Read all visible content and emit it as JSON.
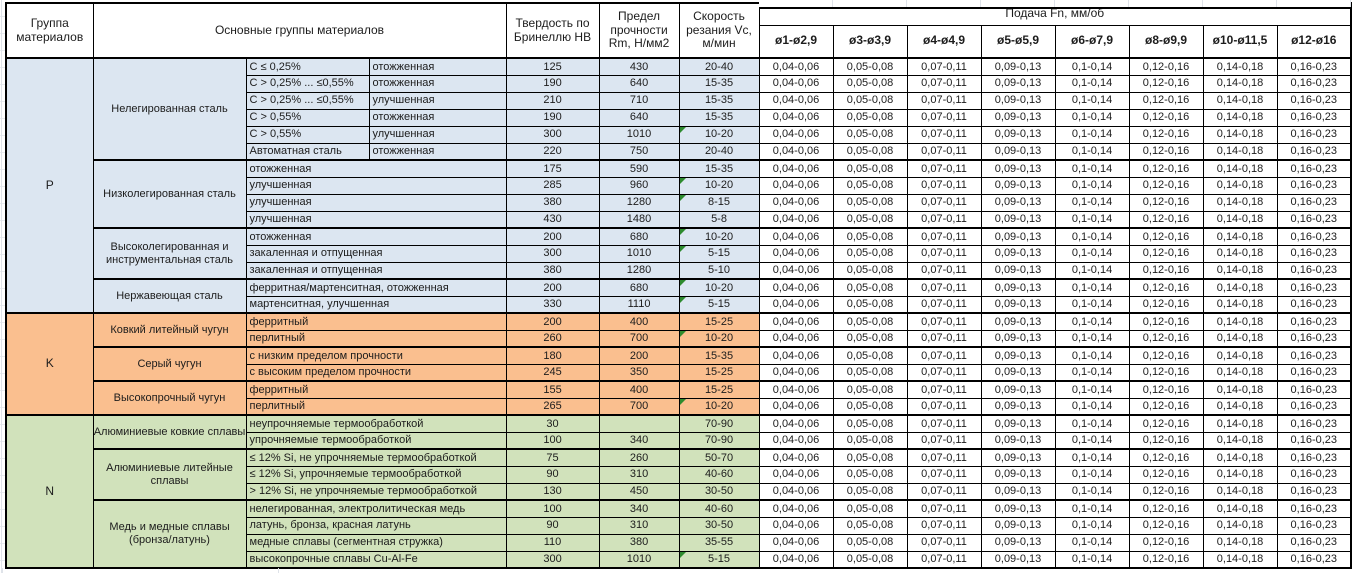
{
  "table": {
    "header": {
      "group_col": "Группа материалов",
      "main_col": "Основные группы материалов",
      "hb_col": "Твердость по Бринеллю HB",
      "rm_col": "Предел прочности Rm, Н/мм2",
      "vc_col": "Скорость резания Vc, м/мин",
      "feed_title": "Подача Fn, мм/об",
      "feed_cols": [
        "ø1-ø2,9",
        "ø3-ø3,9",
        "ø4-ø4,9",
        "ø5-ø5,9",
        "ø6-ø7,9",
        "ø8-ø9,9",
        "ø10-ø11,5",
        "ø12-ø16"
      ]
    },
    "feed_values": [
      "0,04-0,06",
      "0,05-0,08",
      "0,07-0,11",
      "0,09-0,13",
      "0,1-0,14",
      "0,12-0,16",
      "0,14-0,18",
      "0,16-0,23"
    ],
    "colors": {
      "group_p": "#dce6f1",
      "group_k": "#fabf8f",
      "group_n": "#d1e2bb",
      "error_indicator": "#2e8b2e"
    },
    "groups": [
      {
        "letter": "P",
        "color_key": "group_p",
        "subgroups": [
          {
            "name": "Нелегированная сталь",
            "rows": [
              {
                "detail": "C ≤ 0,25%",
                "treatment": "отожженная",
                "hb": "125",
                "rm": "430",
                "vc": "20-40",
                "flag": false
              },
              {
                "detail": "C > 0,25% ... ≤0,55%",
                "treatment": "отожженная",
                "hb": "190",
                "rm": "640",
                "vc": "15-35",
                "flag": false
              },
              {
                "detail": "C > 0,25% ... ≤0,55%",
                "treatment": "улучшенная",
                "hb": "210",
                "rm": "710",
                "vc": "15-35",
                "flag": false
              },
              {
                "detail": "C > 0,55%",
                "treatment": "отожженная",
                "hb": "190",
                "rm": "640",
                "vc": "15-35",
                "flag": false
              },
              {
                "detail": "C > 0,55%",
                "treatment": "улучшенная",
                "hb": "300",
                "rm": "1010",
                "vc": "10-20",
                "flag": true
              },
              {
                "detail": "Автоматная сталь",
                "treatment": "отожженная",
                "hb": "220",
                "rm": "750",
                "vc": "20-40",
                "flag": false
              }
            ]
          },
          {
            "name": "Низколегированная сталь",
            "rows": [
              {
                "detail": "отожженная",
                "hb": "175",
                "rm": "590",
                "vc": "15-35",
                "flag": false
              },
              {
                "detail": "улучшенная",
                "hb": "285",
                "rm": "960",
                "vc": "10-20",
                "flag": true
              },
              {
                "detail": "улучшенная",
                "hb": "380",
                "rm": "1280",
                "vc": "8-15",
                "flag": true
              },
              {
                "detail": "улучшенная",
                "hb": "430",
                "rm": "1480",
                "vc": "5-8",
                "flag": false
              }
            ]
          },
          {
            "name": "Высоколегированная и инструментальная сталь",
            "rows": [
              {
                "detail": "отожженная",
                "hb": "200",
                "rm": "680",
                "vc": "10-20",
                "flag": true
              },
              {
                "detail": "закаленная и отпущенная",
                "hb": "300",
                "rm": "1010",
                "vc": "5-15",
                "flag": true
              },
              {
                "detail": "закаленная и отпущенная",
                "hb": "380",
                "rm": "1280",
                "vc": "5-10",
                "flag": false
              }
            ]
          },
          {
            "name": "Нержавеющая сталь",
            "rows": [
              {
                "detail": "ферритная/мартенситная, отожженная",
                "hb": "200",
                "rm": "680",
                "vc": "10-20",
                "flag": true
              },
              {
                "detail": "мартенситная, улучшенная",
                "hb": "330",
                "rm": "1110",
                "vc": "5-15",
                "flag": true
              }
            ]
          }
        ]
      },
      {
        "letter": "K",
        "color_key": "group_k",
        "subgroups": [
          {
            "name": "Ковкий литейный чугун",
            "rows": [
              {
                "detail": "ферритный",
                "hb": "200",
                "rm": "400",
                "vc": "15-25",
                "flag": false
              },
              {
                "detail": "перлитный",
                "hb": "260",
                "rm": "700",
                "vc": "10-20",
                "flag": true
              }
            ]
          },
          {
            "name": "Серый чугун",
            "rows": [
              {
                "detail": "с низким пределом прочности",
                "hb": "180",
                "rm": "200",
                "vc": "15-35",
                "flag": false
              },
              {
                "detail": "с высоким пределом прочности",
                "hb": "245",
                "rm": "350",
                "vc": "15-25",
                "flag": false
              }
            ]
          },
          {
            "name": "Высокопрочный чугун",
            "rows": [
              {
                "detail": "ферритный",
                "hb": "155",
                "rm": "400",
                "vc": "15-25",
                "flag": false
              },
              {
                "detail": "перлитный",
                "hb": "265",
                "rm": "700",
                "vc": "10-20",
                "flag": true
              }
            ]
          }
        ]
      },
      {
        "letter": "N",
        "color_key": "group_n",
        "subgroups": [
          {
            "name": "Алюминиевые ковкие сплавы",
            "rows": [
              {
                "detail": "неупрочняемые термообработкой",
                "hb": "30",
                "rm": "",
                "vc": "70-90",
                "flag": false
              },
              {
                "detail": "упрочняемые термообработкой",
                "hb": "100",
                "rm": "340",
                "vc": "70-90",
                "flag": false
              }
            ]
          },
          {
            "name": "Алюминиевые литейные сплавы",
            "rows": [
              {
                "detail": "≤ 12% Si, не упрочняемые термообработкой",
                "hb": "75",
                "rm": "260",
                "vc": "50-70",
                "flag": false
              },
              {
                "detail": "≤ 12% Si, упрочняемые термообработкой",
                "hb": "90",
                "rm": "310",
                "vc": "40-60",
                "flag": false
              },
              {
                "detail": "> 12% Si, не упрочняемые термообработкой",
                "hb": "130",
                "rm": "450",
                "vc": "30-50",
                "flag": false
              }
            ]
          },
          {
            "name": "Медь и медные сплавы (бронза/латунь)",
            "rows": [
              {
                "detail": "нелегированная, электролитическая медь",
                "hb": "100",
                "rm": "340",
                "vc": "40-60",
                "flag": false
              },
              {
                "detail": "латунь, бронза, красная латунь",
                "hb": "90",
                "rm": "310",
                "vc": "30-50",
                "flag": false
              },
              {
                "detail": "медные сплавы (сегментная стружка)",
                "hb": "110",
                "rm": "380",
                "vc": "35-55",
                "flag": false
              },
              {
                "detail": "высокопрочные сплавы Cu-Al-Fe",
                "hb": "300",
                "rm": "1010",
                "vc": "5-15",
                "flag": true
              }
            ]
          }
        ]
      }
    ]
  }
}
